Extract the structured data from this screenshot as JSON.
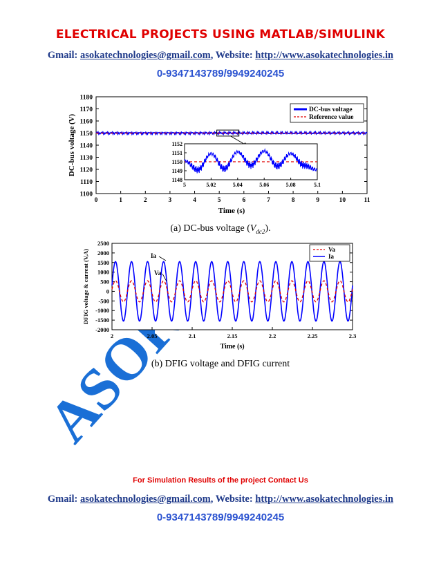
{
  "header": {
    "title": "ELECTRICAL PROJECTS USING MATLAB/SIMULINK",
    "gmail_label": "Gmail:",
    "email": "asokatechnologies@gmail.com",
    "website_label": ", Website:",
    "website": "http://www.asokatechnologies.in",
    "phone": "0-9347143789/9949240245"
  },
  "footer": {
    "note": "For Simulation Results of the project Contact Us",
    "gmail_label": "Gmail:",
    "email": "asokatechnologies@gmail.com",
    "website_label": ", Website:",
    "website": "http://www.asokatechnologies.in",
    "phone": "0-9347143789/9949240245"
  },
  "watermark": {
    "text": "ASOKA",
    "color": "#1a6fd6"
  },
  "colors": {
    "blue_series": "#0000ff",
    "red_series": "#e00000",
    "brand_red": "#e00000",
    "link_blue": "#1f3a8a"
  },
  "chart_data": [
    {
      "type": "line",
      "caption_prefix": "(a) DC-bus voltage (",
      "caption_symbol": "V",
      "caption_sub": "dc2",
      "caption_suffix": ").",
      "xlabel": "Time (s)",
      "ylabel": "DC-bus voltage (V)",
      "xlim": [
        0,
        11
      ],
      "ylim": [
        1100,
        1180
      ],
      "xticks": [
        0,
        1,
        2,
        3,
        4,
        5,
        6,
        7,
        8,
        9,
        10,
        11
      ],
      "yticks": [
        1100,
        1110,
        1120,
        1130,
        1140,
        1150,
        1160,
        1170,
        1180
      ],
      "legend_position": "top-right",
      "series": [
        {
          "name": "DC-bus voltage",
          "color": "#0000ff",
          "style": "solid",
          "x": [
            0,
            5.1
          ],
          "y": [
            1150,
            1150
          ]
        },
        {
          "name": "Reference value",
          "color": "#e00000",
          "style": "dashed",
          "x": [
            0,
            11
          ],
          "y": [
            1150,
            1150
          ]
        }
      ],
      "inset": {
        "xlim": [
          5,
          5.1
        ],
        "ylim": [
          1148,
          1152
        ],
        "xticks": [
          5,
          5.02,
          5.04,
          5.06,
          5.08,
          5.1
        ],
        "yticks": [
          1148,
          1149,
          1150,
          1151,
          1152
        ],
        "blue_x": [
          5.0,
          5.01,
          5.02,
          5.03,
          5.04,
          5.05,
          5.06,
          5.07,
          5.08,
          5.09,
          5.1
        ],
        "blue_y": [
          1150.1,
          1149.1,
          1150.9,
          1149.2,
          1151.1,
          1149.6,
          1151.2,
          1149.5,
          1150.9,
          1149.6,
          1149.1
        ],
        "ref": 1150
      }
    },
    {
      "type": "line",
      "caption": "(b) DFIG voltage and DFIG current",
      "xlabel": "Time (s)",
      "ylabel": "DFIG voltage & current (V,A)",
      "xlim": [
        2,
        2.3
      ],
      "ylim": [
        -2000,
        2500
      ],
      "xticks": [
        2,
        2.05,
        2.1,
        2.15,
        2.2,
        2.25,
        2.3
      ],
      "yticks": [
        -2000,
        -1500,
        -1000,
        -500,
        0,
        500,
        1000,
        1500,
        2000,
        2500
      ],
      "legend_position": "top-right",
      "annotations": [
        "Ia",
        "Va"
      ],
      "series": [
        {
          "name": "Va",
          "color": "#e00000",
          "style": "dashed",
          "amplitude": 550,
          "frequency_hz": 50
        },
        {
          "name": "Ia",
          "color": "#0000ff",
          "style": "solid",
          "amplitude": 1550,
          "frequency_hz": 50
        }
      ]
    }
  ]
}
